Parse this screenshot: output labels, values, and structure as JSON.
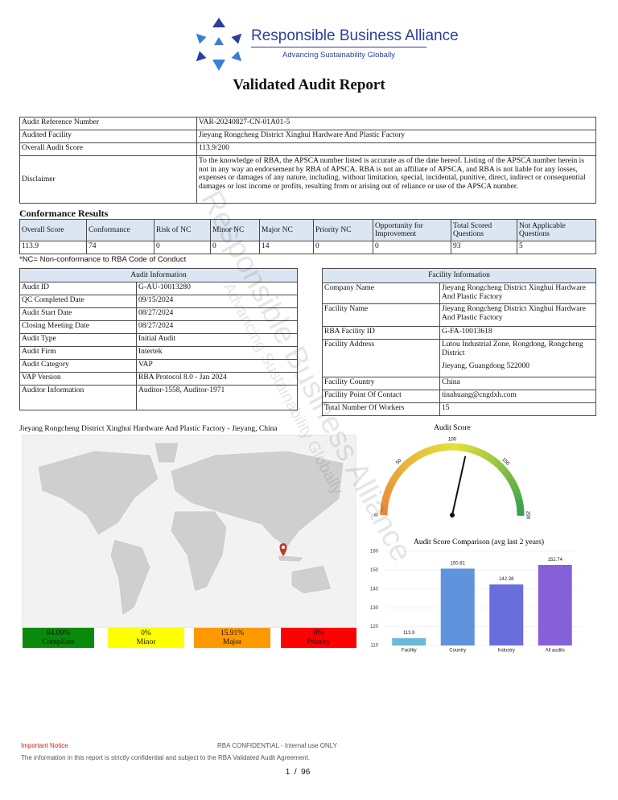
{
  "header": {
    "organization": "Responsible Business Alliance",
    "tagline": "Advancing Sustainability Globally",
    "title": "Validated Audit Report"
  },
  "watermark": {
    "organization": "Responsible Business Alliance",
    "tagline": "Advancing Sustainability Globally"
  },
  "summary": {
    "rows": [
      [
        "Audit Reference Number",
        "VAR-20240827-CN-01A01-5"
      ],
      [
        "Audited Facility",
        "Jieyang Rongcheng District Xinghui Hardware And Plastic Factory"
      ],
      [
        "Overall Audit Score",
        "113.9/200"
      ],
      [
        "Disclaimer",
        "To the knowledge of RBA, the APSCA number listed is accurate as of the date hereof. Listing of the APSCA number herein is not in any way an endorsement by RBA of APSCA. RBA is not an affiliate of APSCA, and RBA is not liable for any losses, expenses or damages of any nature, including, without limitation, special, incidental, punitive, direct, indirect or consequential damages or lost income or profits, resulting from or arising out of reliance or use of the APSCA number."
      ]
    ]
  },
  "conformance": {
    "title": "Conformance Results",
    "headers": [
      "Overall Score",
      "Conformance",
      "Risk of NC",
      "Minor NC",
      "Major NC",
      "Priority NC",
      "Opportunity for Improvement",
      "Total Scored Questions",
      "Not Applicable Questions"
    ],
    "values": [
      113.9,
      74,
      0,
      0,
      14,
      0,
      0,
      93,
      5
    ],
    "note": "*NC= Non-conformance to RBA Code of Conduct"
  },
  "audit_information": {
    "title": "Audit Information",
    "rows": [
      [
        "Audit ID",
        "G-AU-10013280"
      ],
      [
        "QC Completed Date",
        "09/15/2024"
      ],
      [
        "Audit Start Date",
        "08/27/2024"
      ],
      [
        "Closing Meeting Date",
        "08/27/2024"
      ],
      [
        "Audit Type",
        "Initial Audit"
      ],
      [
        "Audit Firm",
        "Intertek"
      ],
      [
        "Audit Category",
        "VAP"
      ],
      [
        "VAP Version",
        "RBA Protocol 8.0 - Jan 2024"
      ],
      [
        "Auditor Information",
        "Auditor-1558, Auditor-1971"
      ]
    ]
  },
  "facility_information": {
    "title": "Facility Information",
    "rows": [
      [
        "Company Name",
        "Jieyang Rongcheng District Xinghui Hardware And Plastic Factory"
      ],
      [
        "Facility Name",
        "Jieyang Rongcheng District Xinghui Hardware And Plastic Factory"
      ],
      [
        "RBA Facility ID",
        "G-FA-10013618"
      ],
      [
        "Facility Address",
        [
          "Lutou Industrial Zone, Rongdong, Rongcheng District",
          "Jieyang, Guangdong 522000"
        ]
      ],
      [
        "Facility Country",
        "China"
      ],
      [
        "Facility Point Of Contact",
        "tinahuang@cngdxh.com"
      ],
      [
        "Total Number Of Workers",
        "15"
      ]
    ]
  },
  "map": {
    "caption": "Jieyang Rongcheng District Xinghui Hardware And Plastic Factory - Jieyang, China",
    "legend": [
      {
        "percent": "84.09%",
        "label": "Compliant",
        "color": "#0a8a0a"
      },
      {
        "percent": "0%",
        "label": "Minor",
        "color": "#ffff00"
      },
      {
        "percent": "15.91%",
        "label": "Major",
        "color": "#ff9900"
      },
      {
        "percent": "0%",
        "label": "Priority",
        "color": "#ff0000"
      }
    ]
  },
  "gauge": {
    "type": "gauge",
    "title": "Audit Score",
    "value": 113.9,
    "ylim": [
      0,
      200
    ],
    "ticks": [
      0,
      50,
      100,
      150,
      200
    ]
  },
  "bar_chart": {
    "type": "bar",
    "title": "Audit Score Comparison (avg last 2 years)",
    "categories": [
      "Facility",
      "Country",
      "Industry",
      "All audits"
    ],
    "values": [
      113.9,
      150.81,
      142.38,
      152.74
    ],
    "colors": [
      "#6cb8d8",
      "#5f93db",
      "#6a6ddc",
      "#8560d8"
    ],
    "ylim": [
      110,
      160
    ],
    "yticks": [
      110,
      120,
      130,
      140,
      150,
      160
    ],
    "grid": true
  },
  "footer": {
    "notice": "Important Notice",
    "confidential": "RBA CONFIDENTIAL - Internal use ONLY",
    "statement": "The information in this report is strictly confidential and subject to the RBA Validated Audit Agreement.",
    "page_number": "1  /  96"
  }
}
